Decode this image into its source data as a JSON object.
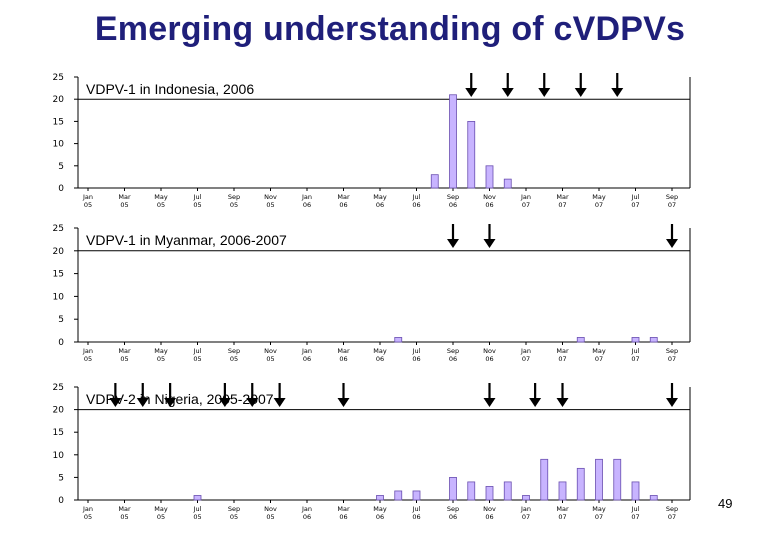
{
  "slide": {
    "title": "Emerging understanding of cVDPVs",
    "page_number": "49",
    "colors": {
      "title": "#1f1f7a",
      "bar_fill": "#c8b4ff",
      "bar_stroke": "#6a4fb0"
    }
  },
  "chart_data": [
    {
      "type": "bar",
      "title": "VDPV-1 in Indonesia, 2006",
      "ylim": [
        0,
        25
      ],
      "yticks": [
        0,
        5,
        10,
        15,
        20,
        25
      ],
      "grid": false,
      "categories": [
        "Jan 05",
        "Feb 05",
        "Mar 05",
        "Apr 05",
        "May 05",
        "Jun 05",
        "Jul 05",
        "Aug 05",
        "Sep 05",
        "Oct 05",
        "Nov 05",
        "Dec 05",
        "Jan 06",
        "Feb 06",
        "Mar 06",
        "Apr 06",
        "May 06",
        "Jun 06",
        "Jul 06",
        "Aug 06",
        "Sep 06",
        "Oct 06",
        "Nov 06",
        "Dec 06",
        "Jan 07",
        "Feb 07",
        "Mar 07",
        "Apr 07",
        "May 07",
        "Jun 07",
        "Jul 07",
        "Aug 07",
        "Sep 07"
      ],
      "tick_labels": [
        [
          "Jan",
          "05"
        ],
        [
          "Mar",
          "05"
        ],
        [
          "May",
          "05"
        ],
        [
          "Jul",
          "05"
        ],
        [
          "Sep",
          "05"
        ],
        [
          "Nov",
          "05"
        ],
        [
          "Jan",
          "06"
        ],
        [
          "Mar",
          "06"
        ],
        [
          "May",
          "06"
        ],
        [
          "Jul",
          "06"
        ],
        [
          "Sep",
          "06"
        ],
        [
          "Nov",
          "06"
        ],
        [
          "Jan",
          "07"
        ],
        [
          "Mar",
          "07"
        ],
        [
          "May",
          "07"
        ],
        [
          "Jul",
          "07"
        ],
        [
          "Sep",
          "07"
        ]
      ],
      "values": [
        0,
        0,
        0,
        0,
        0,
        0,
        0,
        0,
        0,
        0,
        0,
        0,
        0,
        0,
        0,
        0,
        0,
        0,
        0,
        3,
        21,
        15,
        5,
        2,
        0,
        0,
        0,
        0,
        0,
        0,
        0,
        0,
        0
      ],
      "arrow_months": [
        21,
        23,
        25,
        27,
        29
      ],
      "reference_line": 20
    },
    {
      "type": "bar",
      "title": "VDPV-1 in Myanmar, 2006-2007",
      "ylim": [
        0,
        25
      ],
      "yticks": [
        0,
        5,
        10,
        15,
        20,
        25
      ],
      "grid": false,
      "categories": [
        "Jan 05",
        "Feb 05",
        "Mar 05",
        "Apr 05",
        "May 05",
        "Jun 05",
        "Jul 05",
        "Aug 05",
        "Sep 05",
        "Oct 05",
        "Nov 05",
        "Dec 05",
        "Jan 06",
        "Feb 06",
        "Mar 06",
        "Apr 06",
        "May 06",
        "Jun 06",
        "Jul 06",
        "Aug 06",
        "Sep 06",
        "Oct 06",
        "Nov 06",
        "Dec 06",
        "Jan 07",
        "Feb 07",
        "Mar 07",
        "Apr 07",
        "May 07",
        "Jun 07",
        "Jul 07",
        "Aug 07",
        "Sep 07"
      ],
      "tick_labels": [
        [
          "Jan",
          "05"
        ],
        [
          "Mar",
          "05"
        ],
        [
          "May",
          "05"
        ],
        [
          "Jul",
          "05"
        ],
        [
          "Sep",
          "05"
        ],
        [
          "Nov",
          "05"
        ],
        [
          "Jan",
          "06"
        ],
        [
          "Mar",
          "06"
        ],
        [
          "May",
          "06"
        ],
        [
          "Jul",
          "06"
        ],
        [
          "Sep",
          "06"
        ],
        [
          "Nov",
          "06"
        ],
        [
          "Jan",
          "07"
        ],
        [
          "Mar",
          "07"
        ],
        [
          "May",
          "07"
        ],
        [
          "Jul",
          "07"
        ],
        [
          "Sep",
          "07"
        ]
      ],
      "values": [
        0,
        0,
        0,
        0,
        0,
        0,
        0,
        0,
        0,
        0,
        0,
        0,
        0,
        0,
        0,
        0,
        0,
        1,
        0,
        0,
        0,
        0,
        0,
        0,
        0,
        0,
        0,
        1,
        0,
        0,
        1,
        1,
        0
      ],
      "arrow_months": [
        20,
        22,
        32
      ],
      "reference_line": 20
    },
    {
      "type": "bar",
      "title": "VDPV-2 in Nigeria, 2005-2007",
      "ylim": [
        0,
        25
      ],
      "yticks": [
        0,
        5,
        10,
        15,
        20,
        25
      ],
      "grid": false,
      "categories": [
        "Jan 05",
        "Feb 05",
        "Mar 05",
        "Apr 05",
        "May 05",
        "Jun 05",
        "Jul 05",
        "Aug 05",
        "Sep 05",
        "Oct 05",
        "Nov 05",
        "Dec 05",
        "Jan 06",
        "Feb 06",
        "Mar 06",
        "Apr 06",
        "May 06",
        "Jun 06",
        "Jul 06",
        "Aug 06",
        "Sep 06",
        "Oct 06",
        "Nov 06",
        "Dec 06",
        "Jan 07",
        "Feb 07",
        "Mar 07",
        "Apr 07",
        "May 07",
        "Jun 07",
        "Jul 07",
        "Aug 07",
        "Sep 07"
      ],
      "tick_labels": [
        [
          "Jan",
          "05"
        ],
        [
          "Mar",
          "05"
        ],
        [
          "May",
          "05"
        ],
        [
          "Jul",
          "05"
        ],
        [
          "Sep",
          "05"
        ],
        [
          "Nov",
          "05"
        ],
        [
          "Jan",
          "06"
        ],
        [
          "Mar",
          "06"
        ],
        [
          "May",
          "06"
        ],
        [
          "Jul",
          "06"
        ],
        [
          "Sep",
          "06"
        ],
        [
          "Nov",
          "06"
        ],
        [
          "Jan",
          "07"
        ],
        [
          "Mar",
          "07"
        ],
        [
          "May",
          "07"
        ],
        [
          "Jul",
          "07"
        ],
        [
          "Sep",
          "07"
        ]
      ],
      "values": [
        0,
        0,
        0,
        0,
        0,
        0,
        1,
        0,
        0,
        0,
        0,
        0,
        0,
        0,
        0,
        0,
        1,
        2,
        2,
        0,
        5,
        4,
        3,
        4,
        1,
        9,
        4,
        7,
        9,
        9,
        4,
        1,
        0
      ],
      "arrow_months": [
        1.5,
        3,
        4.5,
        7.5,
        9,
        10.5,
        14,
        22,
        24.5,
        26,
        32
      ],
      "reference_line": 20
    }
  ]
}
